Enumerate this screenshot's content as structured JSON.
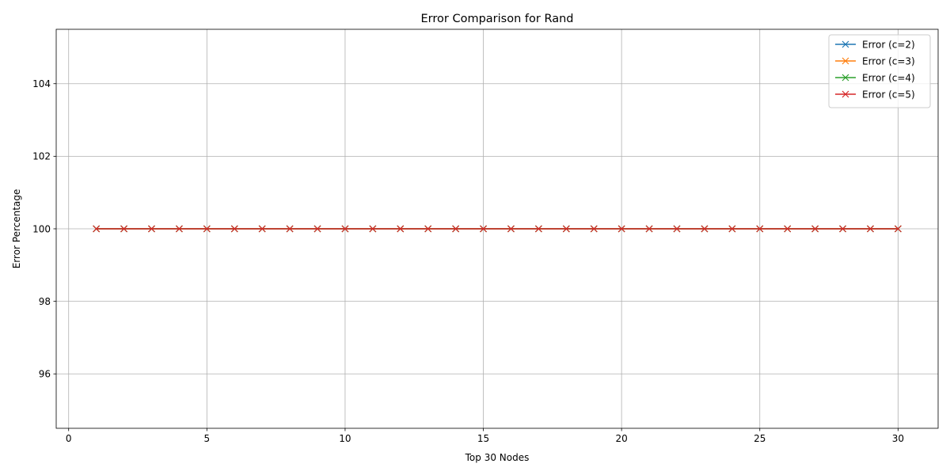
{
  "chart_data": {
    "type": "line",
    "title": "Error Comparison for Rand",
    "xlabel": "Top 30 Nodes",
    "ylabel": "Error Percentage",
    "xlim": [
      -0.45,
      31.45
    ],
    "ylim": [
      94.5,
      105.5
    ],
    "xticks": [
      0,
      5,
      10,
      15,
      20,
      25,
      30
    ],
    "yticks": [
      96,
      98,
      100,
      102,
      104
    ],
    "grid": true,
    "legend_position": "top-right",
    "marker": "x",
    "x": [
      1,
      2,
      3,
      4,
      5,
      6,
      7,
      8,
      9,
      10,
      11,
      12,
      13,
      14,
      15,
      16,
      17,
      18,
      19,
      20,
      21,
      22,
      23,
      24,
      25,
      26,
      27,
      28,
      29,
      30
    ],
    "series": [
      {
        "name": "Error (c=2)",
        "color": "#1f77b4",
        "values": [
          100,
          100,
          100,
          100,
          100,
          100,
          100,
          100,
          100,
          100,
          100,
          100,
          100,
          100,
          100,
          100,
          100,
          100,
          100,
          100,
          100,
          100,
          100,
          100,
          100,
          100,
          100,
          100,
          100,
          100
        ]
      },
      {
        "name": "Error (c=3)",
        "color": "#ff7f0e",
        "values": [
          100,
          100,
          100,
          100,
          100,
          100,
          100,
          100,
          100,
          100,
          100,
          100,
          100,
          100,
          100,
          100,
          100,
          100,
          100,
          100,
          100,
          100,
          100,
          100,
          100,
          100,
          100,
          100,
          100,
          100
        ]
      },
      {
        "name": "Error (c=4)",
        "color": "#2ca02c",
        "values": [
          100,
          100,
          100,
          100,
          100,
          100,
          100,
          100,
          100,
          100,
          100,
          100,
          100,
          100,
          100,
          100,
          100,
          100,
          100,
          100,
          100,
          100,
          100,
          100,
          100,
          100,
          100,
          100,
          100,
          100
        ]
      },
      {
        "name": "Error (c=5)",
        "color": "#d62728",
        "values": [
          100,
          100,
          100,
          100,
          100,
          100,
          100,
          100,
          100,
          100,
          100,
          100,
          100,
          100,
          100,
          100,
          100,
          100,
          100,
          100,
          100,
          100,
          100,
          100,
          100,
          100,
          100,
          100,
          100,
          100
        ]
      }
    ]
  }
}
